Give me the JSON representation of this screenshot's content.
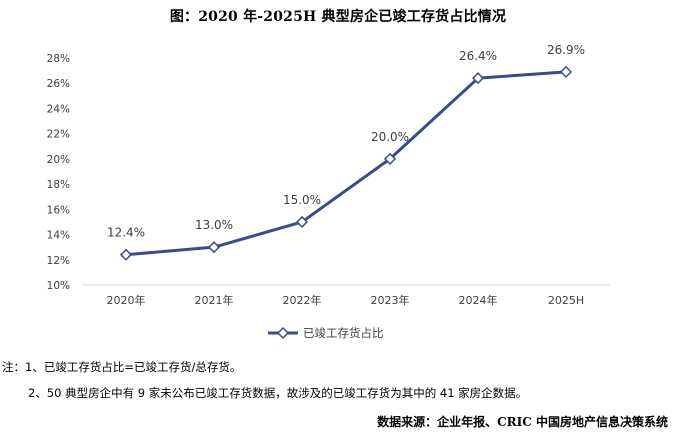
{
  "chart_data": {
    "type": "line",
    "title": "图：2020 年-2025H 典型房企已竣工存货占比情况",
    "categories": [
      "2020年",
      "2021年",
      "2022年",
      "2023年",
      "2024年",
      "2025H"
    ],
    "series": [
      {
        "name": "已竣工存货占比",
        "values": [
          12.4,
          13.0,
          15.0,
          20.0,
          26.4,
          26.9
        ],
        "labels": [
          "12.4%",
          "13.0%",
          "15.0%",
          "20.0%",
          "26.4%",
          "26.9%"
        ],
        "color": "#3b4a8f"
      }
    ],
    "ylim": [
      10,
      28
    ],
    "yticks": [
      10,
      12,
      14,
      16,
      18,
      20,
      22,
      24,
      26,
      28
    ],
    "ytick_labels": [
      "10%",
      "12%",
      "14%",
      "16%",
      "18%",
      "20%",
      "22%",
      "24%",
      "26%",
      "28%"
    ],
    "legend_position": "bottom",
    "grid": false
  },
  "notes": [
    "注：1、已竣工存货占比=已竣工存货/总存货。",
    "2、50 典型房企中有 9 家未公布已竣工存货数据，故涉及的已竣工存货为其中的 41 家房企数据。"
  ],
  "source": "数据来源：企业年报、CRIC 中国房地产信息决策系统"
}
